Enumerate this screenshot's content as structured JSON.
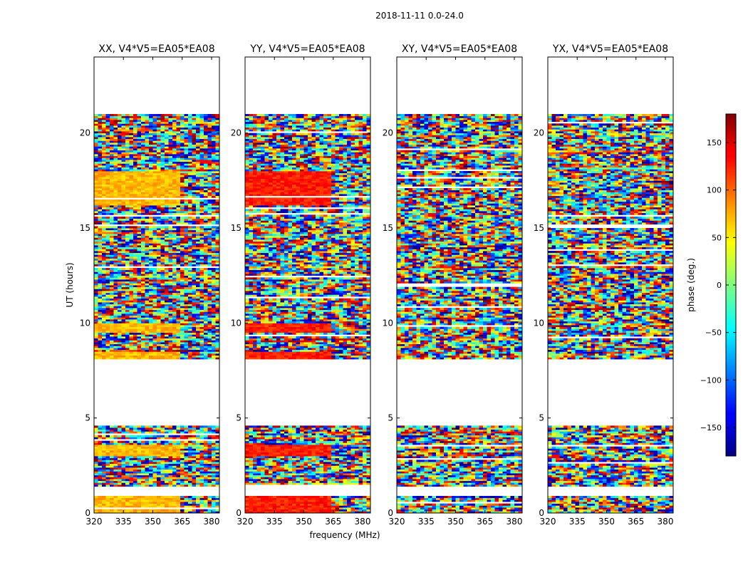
{
  "chart_data": {
    "type": "heatmap",
    "suptitle": "2018-11-11 0.0-24.0",
    "xlabel": "frequency (MHz)",
    "ylabel": "UT (hours)",
    "xlim": [
      320,
      384
    ],
    "ylim": [
      0,
      24
    ],
    "x_ticks": [
      320,
      335,
      350,
      365,
      380
    ],
    "y_ticks": [
      0,
      5,
      10,
      15,
      20
    ],
    "panels": [
      {
        "title": "XX, V4*V5=EA05*EA08",
        "coherent_phase": 70
      },
      {
        "title": "YY, V4*V5=EA05*EA08",
        "coherent_phase": 125
      },
      {
        "title": "XY, V4*V5=EA05*EA08",
        "coherent_phase": null
      },
      {
        "title": "YX, V4*V5=EA05*EA08",
        "coherent_phase": null
      }
    ],
    "observed_time_ranges_hours": [
      [
        0.0,
        0.9
      ],
      [
        1.4,
        4.6
      ],
      [
        8.1,
        21.0
      ]
    ],
    "colorbar": {
      "label": "phase (deg.)",
      "range": [
        -180,
        180
      ],
      "ticks": [
        150,
        100,
        50,
        0,
        -50,
        -100,
        -150
      ],
      "tick_labels": [
        "150",
        "100",
        "50",
        "0",
        "−50",
        "−100",
        "−150"
      ]
    }
  }
}
